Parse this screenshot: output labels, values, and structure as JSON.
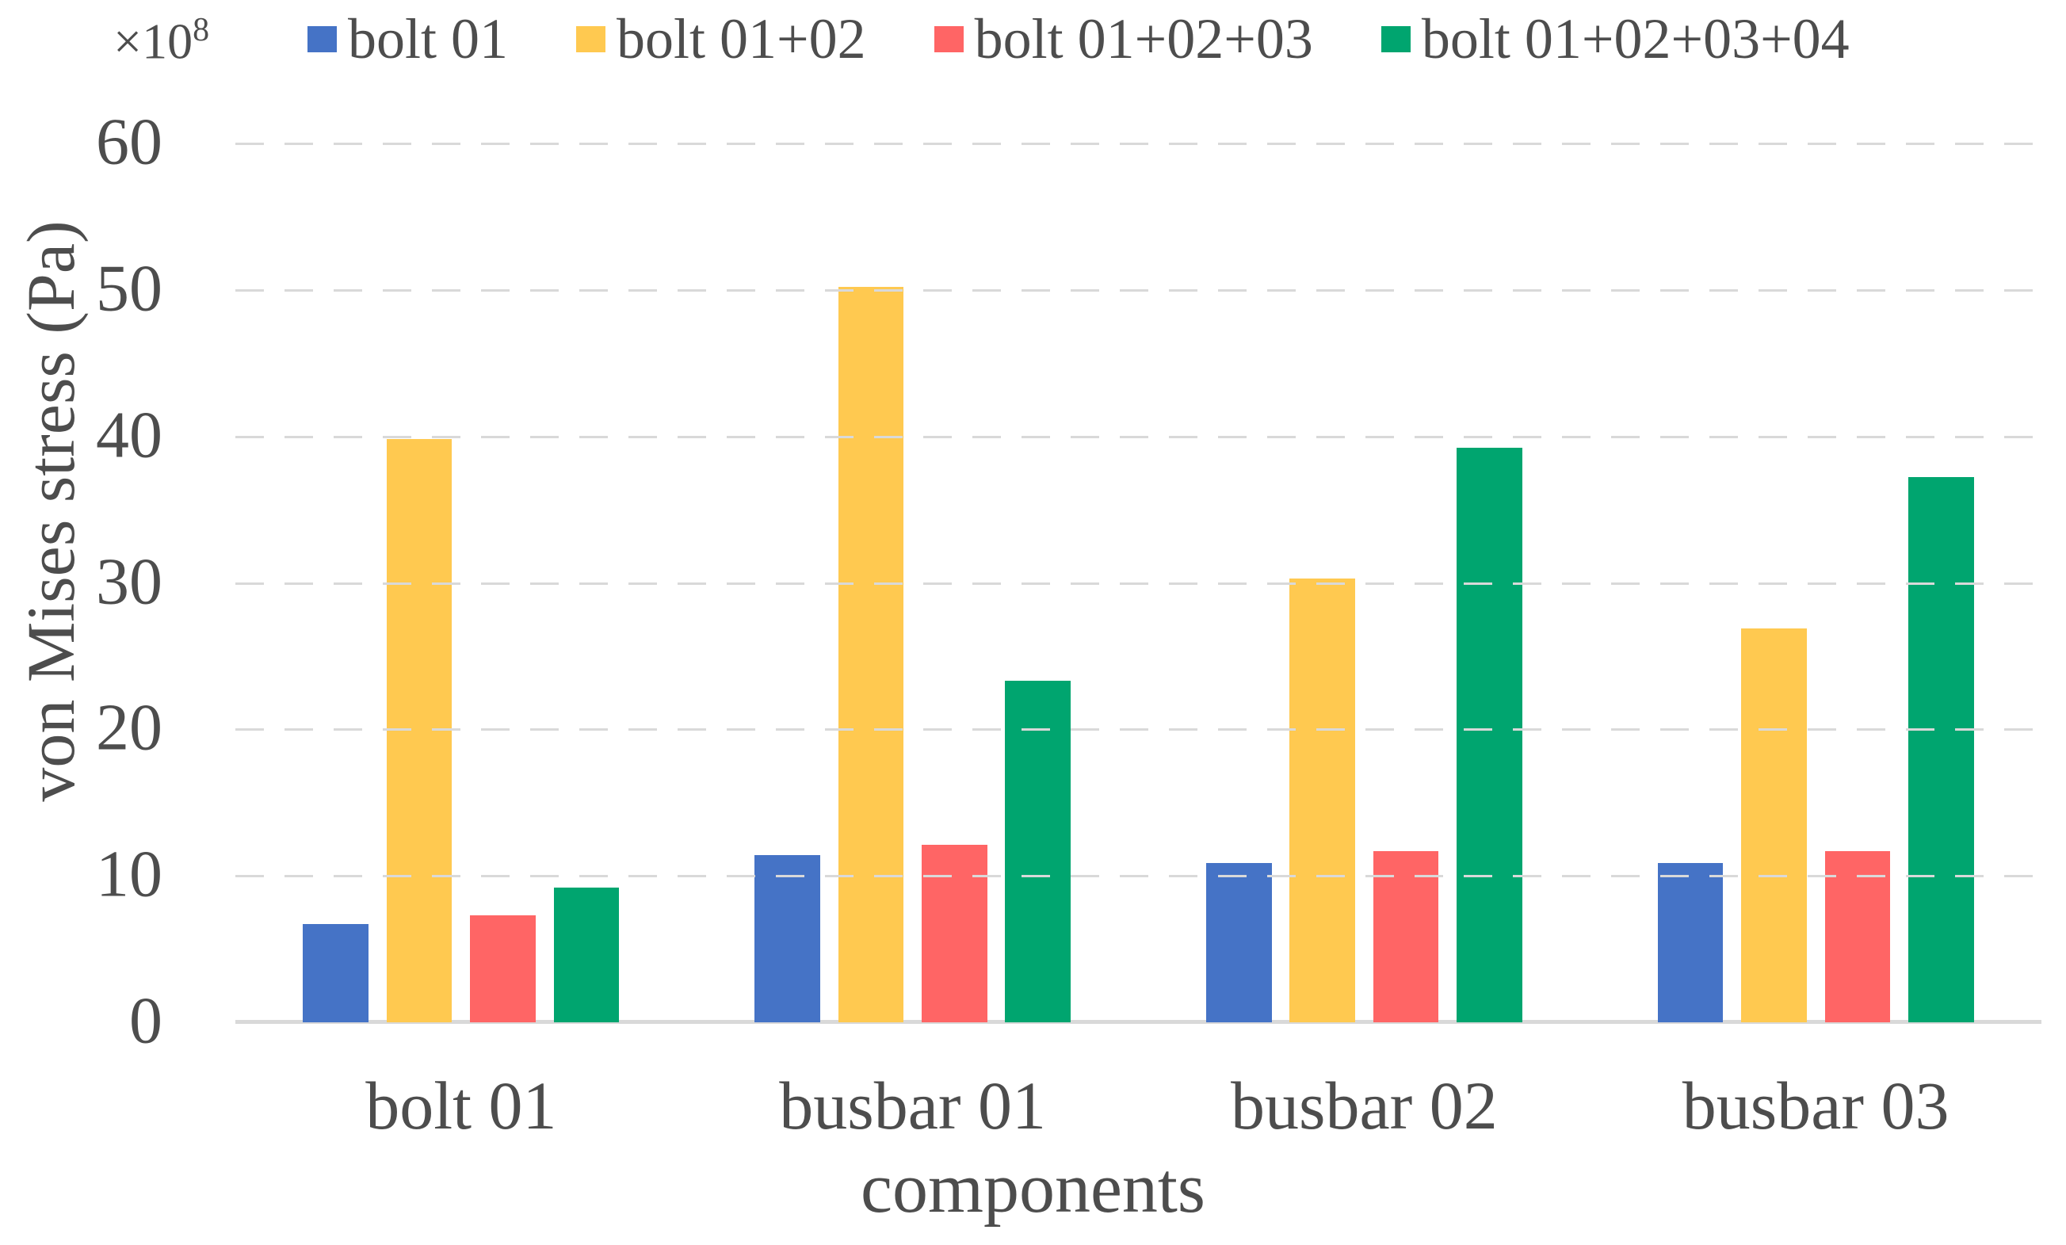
{
  "chart_data": {
    "type": "bar",
    "title": "",
    "xlabel": "components",
    "ylabel": "von Mises stress (Pa)",
    "y_multiplier_base": "×10",
    "y_multiplier_exponent": "8",
    "ylim": [
      0,
      60
    ],
    "yticks": [
      0,
      10,
      20,
      30,
      40,
      50,
      60
    ],
    "grid": "horizontal-dashed",
    "legend_position": "top",
    "categories": [
      "bolt 01",
      "busbar 01",
      "busbar 02",
      "busbar 03"
    ],
    "series": [
      {
        "name": "bolt 01",
        "color": "#4573C6",
        "values": [
          6.7,
          11.4,
          10.9,
          10.9
        ]
      },
      {
        "name": "bolt 01+02",
        "color": "#FFC950",
        "values": [
          39.8,
          50.2,
          30.3,
          26.9
        ]
      },
      {
        "name": "bolt 01+02+03",
        "color": "#FF6565",
        "values": [
          7.3,
          12.1,
          11.7,
          11.7
        ]
      },
      {
        "name": "bolt 01+02+03+04",
        "color": "#00A56F",
        "values": [
          9.2,
          23.3,
          39.2,
          37.2
        ]
      }
    ],
    "colors": {
      "grid": "#D9D9D9",
      "axis_line": "#D9D9D9",
      "text": "#4D4D4D",
      "background": "#FFFFFF"
    }
  }
}
